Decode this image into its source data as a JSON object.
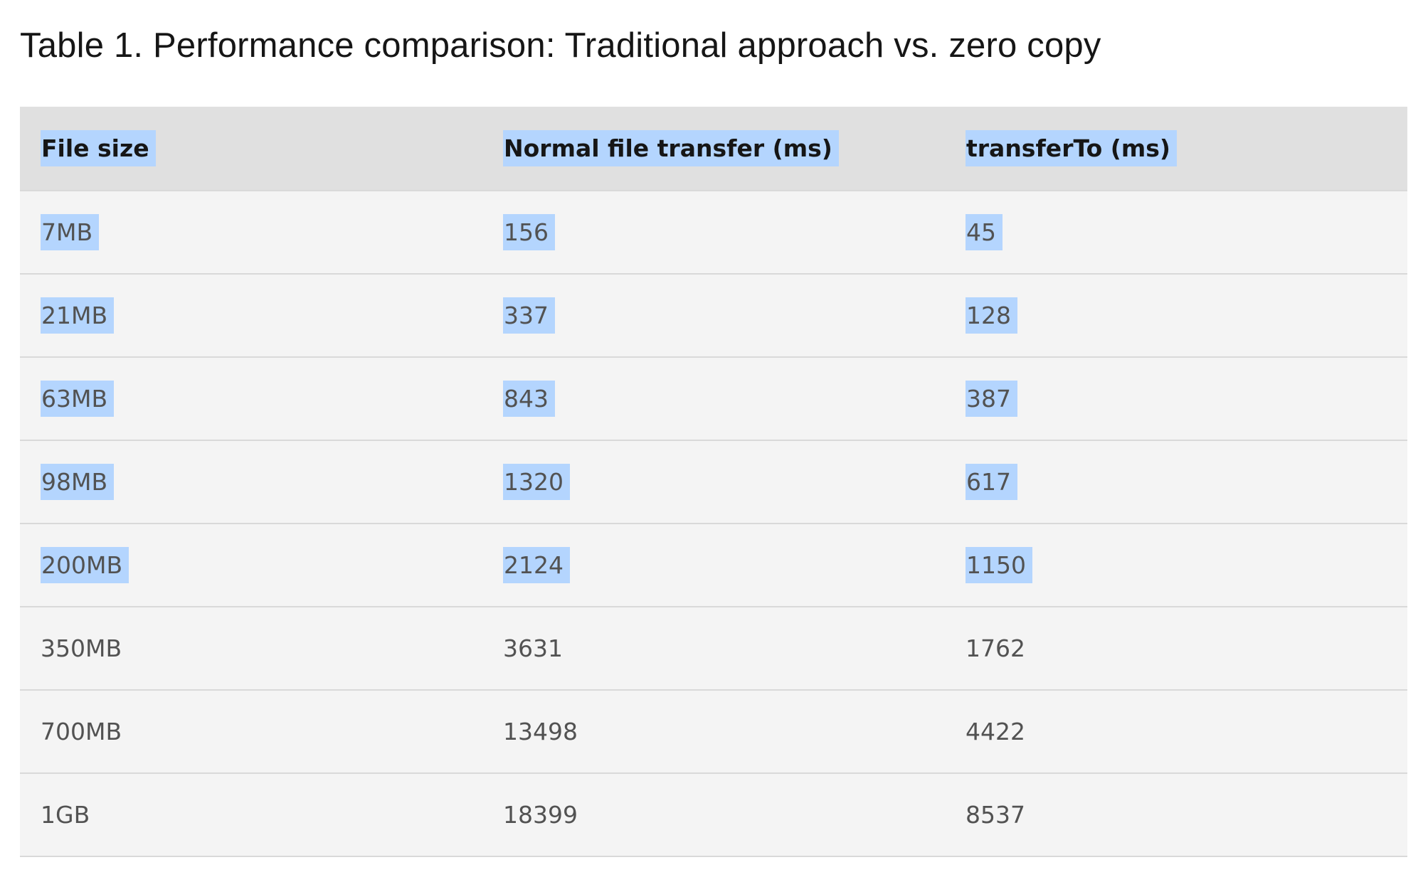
{
  "caption": "Table 1. Performance comparison: Traditional approach vs. zero copy",
  "table": {
    "headers": [
      "File size",
      "Normal file transfer (ms)",
      "transferTo (ms)"
    ],
    "rows": [
      [
        "7MB",
        "156",
        "45"
      ],
      [
        "21MB",
        "337",
        "128"
      ],
      [
        "63MB",
        "843",
        "387"
      ],
      [
        "98MB",
        "1320",
        "617"
      ],
      [
        "200MB",
        "2124",
        "1150"
      ],
      [
        "350MB",
        "3631",
        "1762"
      ],
      [
        "700MB",
        "13498",
        "4422"
      ],
      [
        "1GB",
        "18399",
        "8537"
      ]
    ],
    "selection": {
      "color": "#b4d5fe",
      "highlighted_rows_including_header": 6
    }
  }
}
